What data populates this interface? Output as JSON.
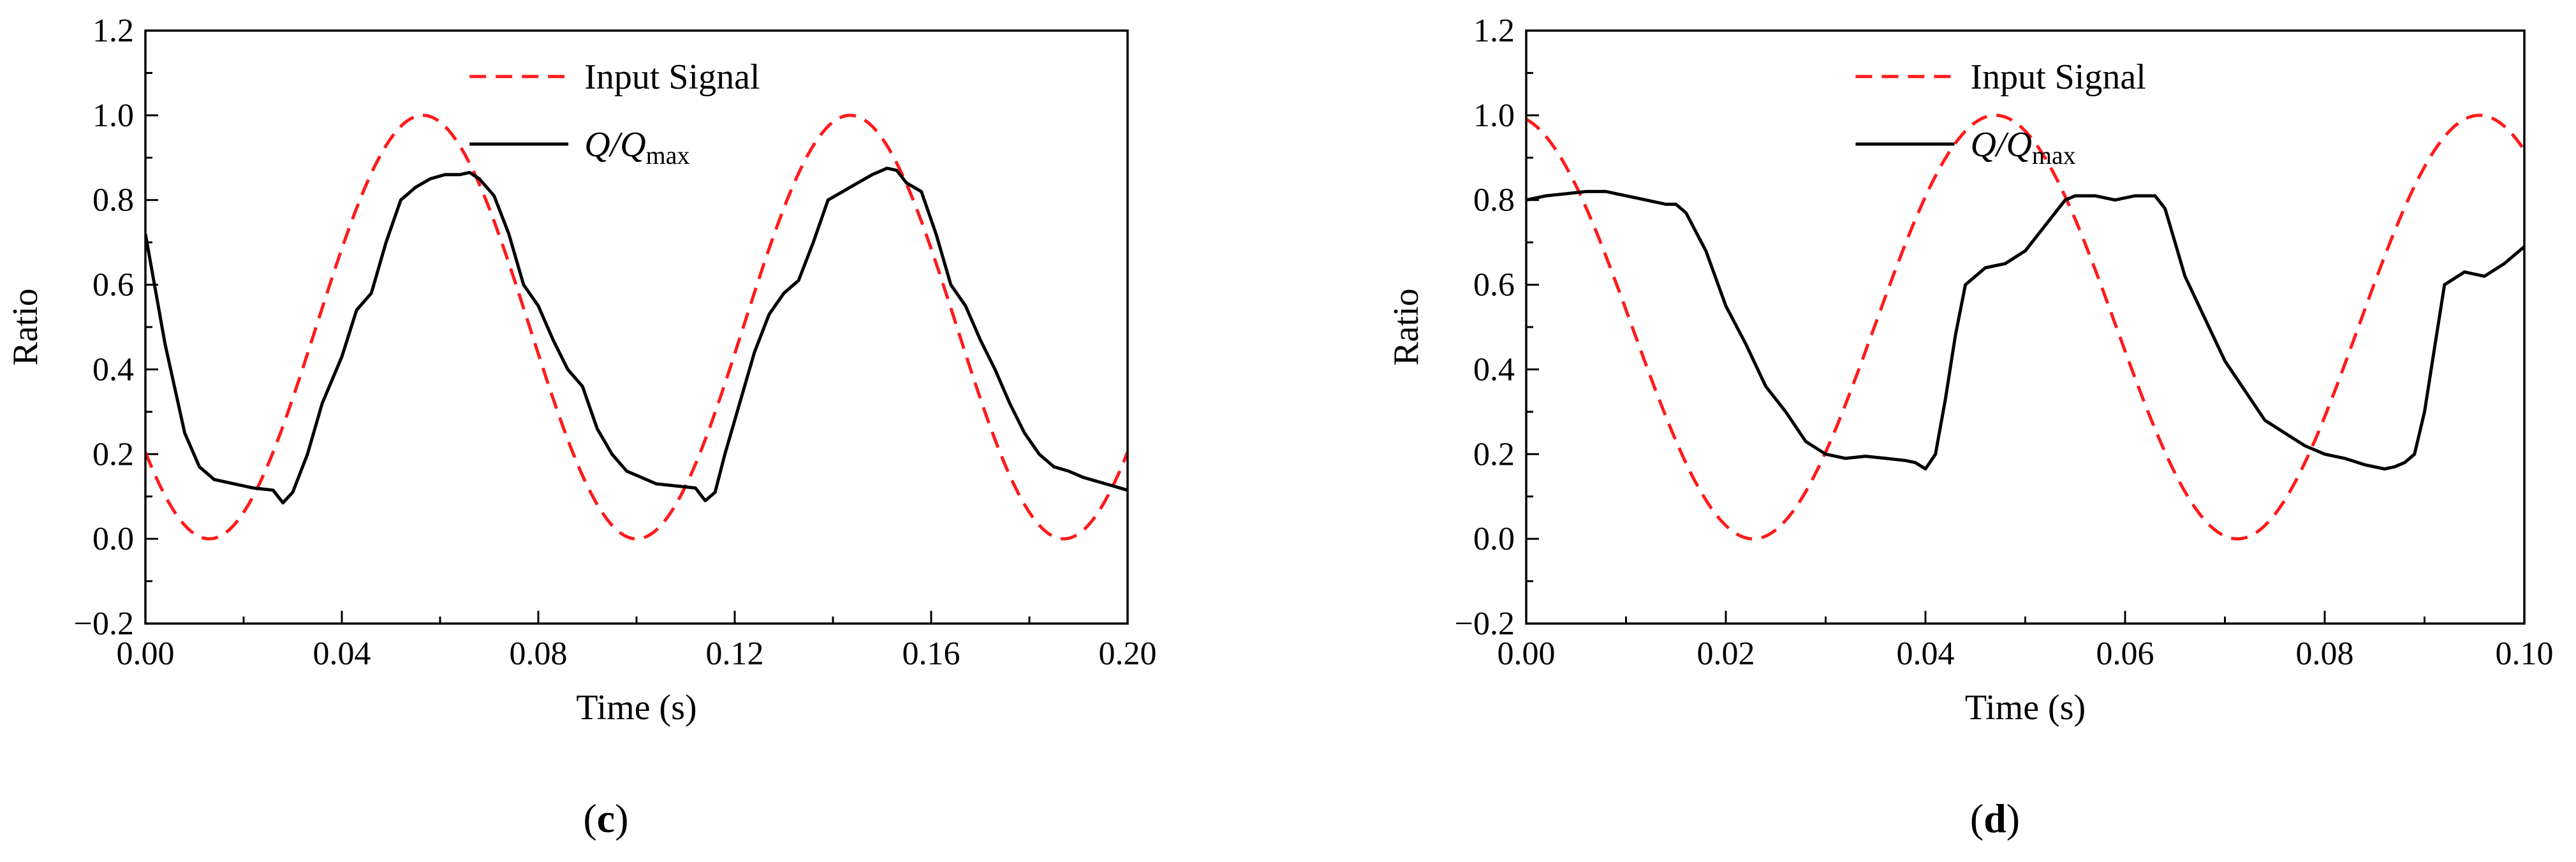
{
  "chart_data": [
    {
      "type": "line",
      "panel_label": "c",
      "xlabel": "Time (s)",
      "ylabel": "Ratio",
      "xlim": [
        0.0,
        0.2
      ],
      "ylim": [
        -0.2,
        1.2
      ],
      "x_ticks": [
        "0.00",
        "0.04",
        "0.08",
        "0.12",
        "0.16",
        "0.20"
      ],
      "y_ticks": [
        "−0.2",
        "0.0",
        "0.2",
        "0.4",
        "0.6",
        "0.8",
        "1.0",
        "1.2"
      ],
      "legend": {
        "placement": "top-center",
        "entries": [
          "Input Signal",
          "Q/Qmax"
        ]
      },
      "series": [
        {
          "name": "Input Signal",
          "style": "dashed",
          "color": "#ff1a1a",
          "function": {
            "kind": "raised-cosine",
            "period": 0.087,
            "peak_time": 0.0565,
            "min": 0.0,
            "max": 1.0
          }
        },
        {
          "name": "Q/Qmax",
          "style": "solid",
          "color": "#000000",
          "x": [
            0.0,
            0.004,
            0.008,
            0.011,
            0.014,
            0.018,
            0.022,
            0.026,
            0.028,
            0.03,
            0.033,
            0.036,
            0.04,
            0.043,
            0.046,
            0.049,
            0.052,
            0.055,
            0.058,
            0.061,
            0.064,
            0.066,
            0.068,
            0.071,
            0.074,
            0.077,
            0.08,
            0.083,
            0.086,
            0.089,
            0.092,
            0.095,
            0.098,
            0.101,
            0.104,
            0.108,
            0.112,
            0.114,
            0.116,
            0.118,
            0.121,
            0.124,
            0.127,
            0.13,
            0.133,
            0.136,
            0.139,
            0.142,
            0.145,
            0.148,
            0.151,
            0.153,
            0.155,
            0.158,
            0.161,
            0.164,
            0.167,
            0.17,
            0.173,
            0.176,
            0.179,
            0.182,
            0.185,
            0.188,
            0.191,
            0.194,
            0.197,
            0.2
          ],
          "y": [
            0.72,
            0.46,
            0.25,
            0.17,
            0.14,
            0.13,
            0.12,
            0.115,
            0.085,
            0.11,
            0.2,
            0.32,
            0.43,
            0.54,
            0.58,
            0.7,
            0.8,
            0.83,
            0.85,
            0.86,
            0.86,
            0.865,
            0.85,
            0.81,
            0.72,
            0.6,
            0.55,
            0.47,
            0.4,
            0.36,
            0.26,
            0.2,
            0.16,
            0.145,
            0.13,
            0.125,
            0.12,
            0.09,
            0.11,
            0.2,
            0.32,
            0.44,
            0.53,
            0.58,
            0.61,
            0.7,
            0.8,
            0.82,
            0.84,
            0.86,
            0.875,
            0.87,
            0.84,
            0.82,
            0.72,
            0.6,
            0.55,
            0.47,
            0.4,
            0.32,
            0.25,
            0.2,
            0.17,
            0.16,
            0.145,
            0.135,
            0.125,
            0.115
          ]
        }
      ]
    },
    {
      "type": "line",
      "panel_label": "d",
      "xlabel": "Time  (s)",
      "ylabel": "Ratio",
      "xlim": [
        0.0,
        0.1
      ],
      "ylim": [
        -0.2,
        1.2
      ],
      "x_ticks": [
        "0.00",
        "0.02",
        "0.04",
        "0.06",
        "0.08",
        "0.10"
      ],
      "y_ticks": [
        "−0.2",
        "0.0",
        "0.2",
        "0.4",
        "0.6",
        "0.8",
        "1.0",
        "1.2"
      ],
      "legend": {
        "placement": "top-center",
        "entries": [
          "Input Signal",
          "Q/Qmax"
        ]
      },
      "series": [
        {
          "name": "Input Signal",
          "style": "dashed",
          "color": "#ff1a1a",
          "function": {
            "kind": "raised-cosine",
            "period": 0.0485,
            "peak_time": 0.047,
            "min": 0.0,
            "max": 1.0
          }
        },
        {
          "name": "Q/Qmax",
          "style": "solid",
          "color": "#000000",
          "x": [
            0.0,
            0.002,
            0.004,
            0.006,
            0.008,
            0.01,
            0.012,
            0.014,
            0.015,
            0.016,
            0.018,
            0.02,
            0.022,
            0.024,
            0.026,
            0.028,
            0.03,
            0.032,
            0.034,
            0.036,
            0.038,
            0.039,
            0.04,
            0.041,
            0.042,
            0.043,
            0.044,
            0.046,
            0.048,
            0.05,
            0.052,
            0.054,
            0.055,
            0.057,
            0.059,
            0.061,
            0.062,
            0.063,
            0.064,
            0.065,
            0.066,
            0.068,
            0.07,
            0.072,
            0.074,
            0.076,
            0.078,
            0.08,
            0.082,
            0.084,
            0.086,
            0.087,
            0.088,
            0.089,
            0.09,
            0.091,
            0.092,
            0.094,
            0.096,
            0.098,
            0.1
          ],
          "y": [
            0.8,
            0.81,
            0.815,
            0.82,
            0.82,
            0.81,
            0.8,
            0.79,
            0.79,
            0.77,
            0.68,
            0.55,
            0.46,
            0.36,
            0.3,
            0.23,
            0.2,
            0.19,
            0.195,
            0.19,
            0.185,
            0.18,
            0.165,
            0.2,
            0.33,
            0.48,
            0.6,
            0.64,
            0.65,
            0.68,
            0.74,
            0.8,
            0.81,
            0.81,
            0.8,
            0.81,
            0.81,
            0.81,
            0.78,
            0.7,
            0.62,
            0.52,
            0.42,
            0.35,
            0.28,
            0.25,
            0.22,
            0.2,
            0.19,
            0.175,
            0.165,
            0.17,
            0.18,
            0.2,
            0.3,
            0.45,
            0.6,
            0.63,
            0.62,
            0.65,
            0.69
          ]
        }
      ]
    }
  ]
}
